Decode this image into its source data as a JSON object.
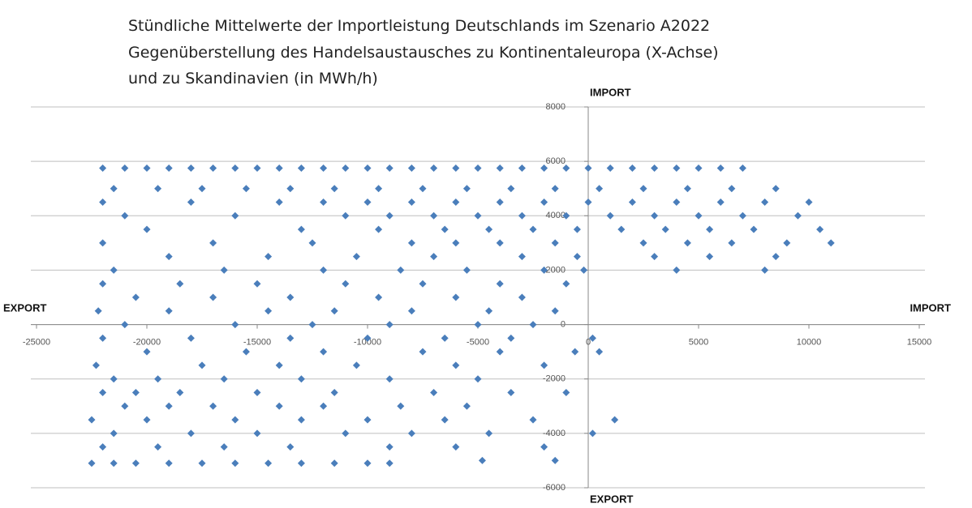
{
  "chart_data": {
    "type": "scatter",
    "title": [
      "Stündliche Mittelwerte der Importleistung Deutschlands im Szenario A2022",
      "Gegenüberstellung des Handelsaustausches zu Kontinentaleuropa (X-Achse)",
      "und zu Skandinavien  (in MWh/h)"
    ],
    "annotations": [
      "IMPORT",
      "EXPORT",
      "EXPORT",
      "IMPORT"
    ],
    "color": "#4a7ebb",
    "xlim": [
      -25000,
      15000
    ],
    "xticks": [
      -25000,
      -20000,
      -15000,
      -10000,
      -5000,
      0,
      5000,
      10000,
      15000
    ],
    "ylim": [
      -6000,
      8000
    ],
    "yticks": [
      -6000,
      -4000,
      -2000,
      0,
      2000,
      4000,
      6000,
      8000
    ],
    "grid": true,
    "x": [
      -22000,
      -21000,
      -20000,
      -19000,
      -18000,
      -17000,
      -16000,
      -15000,
      -14000,
      -13000,
      -12000,
      -11000,
      -10000,
      -9000,
      -8000,
      -7000,
      -6000,
      -5000,
      -4000,
      -3000,
      -2000,
      -1000,
      0,
      1000,
      2000,
      3000,
      4000,
      5000,
      6000,
      7000,
      -21500,
      -19500,
      -17500,
      -15500,
      -13500,
      -11500,
      -9500,
      -7500,
      -5500,
      -3500,
      -1500,
      500,
      2500,
      4500,
      6500,
      8500,
      -22000,
      -18000,
      -14000,
      -12000,
      -10000,
      -8000,
      -6000,
      -4000,
      -2000,
      0,
      2000,
      4000,
      6000,
      8000,
      10000,
      -21000,
      -16000,
      -11000,
      -9000,
      -7000,
      -5000,
      -3000,
      -1000,
      1000,
      3000,
      5000,
      7000,
      9500,
      -20000,
      -13000,
      -9500,
      -6500,
      -4500,
      -2500,
      -500,
      1500,
      3500,
      5500,
      7500,
      10500,
      -22000,
      -17000,
      -12500,
      -8000,
      -6000,
      -4000,
      -1500,
      2500,
      4500,
      6500,
      9000,
      11000,
      -19000,
      -14500,
      -10500,
      -7000,
      -3000,
      -500,
      3000,
      5500,
      8500,
      -21500,
      -16500,
      -12000,
      -8500,
      -5500,
      -2000,
      -200,
      4000,
      8000,
      -22000,
      -18500,
      -15000,
      -11000,
      -7500,
      -4000,
      -1000,
      -20500,
      -17000,
      -13500,
      -9500,
      -6000,
      -3000,
      -22200,
      -19000,
      -14500,
      -11500,
      -8000,
      -4500,
      -1500,
      -21000,
      -16000,
      -12500,
      -9000,
      -5000,
      -2500,
      -22000,
      -18000,
      -13500,
      -10000,
      -6500,
      -3500,
      200,
      -20000,
      -15500,
      -12000,
      -7500,
      -4000,
      -600,
      500,
      -22300,
      -17500,
      -14000,
      -10500,
      -6000,
      -2000,
      -21500,
      -19500,
      -16500,
      -13000,
      -9000,
      -5000,
      -22000,
      -20500,
      -18500,
      -15000,
      -11500,
      -7000,
      -3500,
      -1000,
      -21000,
      -19000,
      -17000,
      -14000,
      -12000,
      -8500,
      -5500,
      -22500,
      -20000,
      -16000,
      -13000,
      -10000,
      -6500,
      -2500,
      1200,
      -21500,
      -18000,
      -15000,
      -11000,
      -8000,
      -4500,
      200,
      -22000,
      -19500,
      -16500,
      -13500,
      -9000,
      -6000,
      -2000,
      -4800,
      -1500,
      -22500,
      -21500,
      -20500,
      -19000,
      -17500,
      -16000,
      -14500,
      -13000,
      -11500,
      -10000,
      -9000
    ],
    "values": [
      5750,
      5750,
      5750,
      5750,
      5750,
      5750,
      5750,
      5750,
      5750,
      5750,
      5750,
      5750,
      5750,
      5750,
      5750,
      5750,
      5750,
      5750,
      5750,
      5750,
      5750,
      5750,
      5750,
      5750,
      5750,
      5750,
      5750,
      5750,
      5750,
      5750,
      5000,
      5000,
      5000,
      5000,
      5000,
      5000,
      5000,
      5000,
      5000,
      5000,
      5000,
      5000,
      5000,
      5000,
      5000,
      5000,
      4500,
      4500,
      4500,
      4500,
      4500,
      4500,
      4500,
      4500,
      4500,
      4500,
      4500,
      4500,
      4500,
      4500,
      4500,
      4000,
      4000,
      4000,
      4000,
      4000,
      4000,
      4000,
      4000,
      4000,
      4000,
      4000,
      4000,
      4000,
      3500,
      3500,
      3500,
      3500,
      3500,
      3500,
      3500,
      3500,
      3500,
      3500,
      3500,
      3500,
      3000,
      3000,
      3000,
      3000,
      3000,
      3000,
      3000,
      3000,
      3000,
      3000,
      3000,
      3000,
      2500,
      2500,
      2500,
      2500,
      2500,
      2500,
      2500,
      2500,
      2500,
      2000,
      2000,
      2000,
      2000,
      2000,
      2000,
      2000,
      2000,
      2000,
      1500,
      1500,
      1500,
      1500,
      1500,
      1500,
      1500,
      1000,
      1000,
      1000,
      1000,
      1000,
      1000,
      500,
      500,
      500,
      500,
      500,
      500,
      500,
      0,
      0,
      0,
      0,
      0,
      0,
      -500,
      -500,
      -500,
      -500,
      -500,
      -500,
      -500,
      -1000,
      -1000,
      -1000,
      -1000,
      -1000,
      -1000,
      -1000,
      -1500,
      -1500,
      -1500,
      -1500,
      -1500,
      -1500,
      -2000,
      -2000,
      -2000,
      -2000,
      -2000,
      -2000,
      -2500,
      -2500,
      -2500,
      -2500,
      -2500,
      -2500,
      -2500,
      -2500,
      -3000,
      -3000,
      -3000,
      -3000,
      -3000,
      -3000,
      -3000,
      -3500,
      -3500,
      -3500,
      -3500,
      -3500,
      -3500,
      -3500,
      -3500,
      -4000,
      -4000,
      -4000,
      -4000,
      -4000,
      -4000,
      -4000,
      -4500,
      -4500,
      -4500,
      -4500,
      -4500,
      -4500,
      -4500,
      -5000,
      -5000,
      -5100,
      -5100,
      -5100,
      -5100,
      -5100,
      -5100,
      -5100,
      -5100,
      -5100,
      -5100,
      -5100
    ]
  }
}
